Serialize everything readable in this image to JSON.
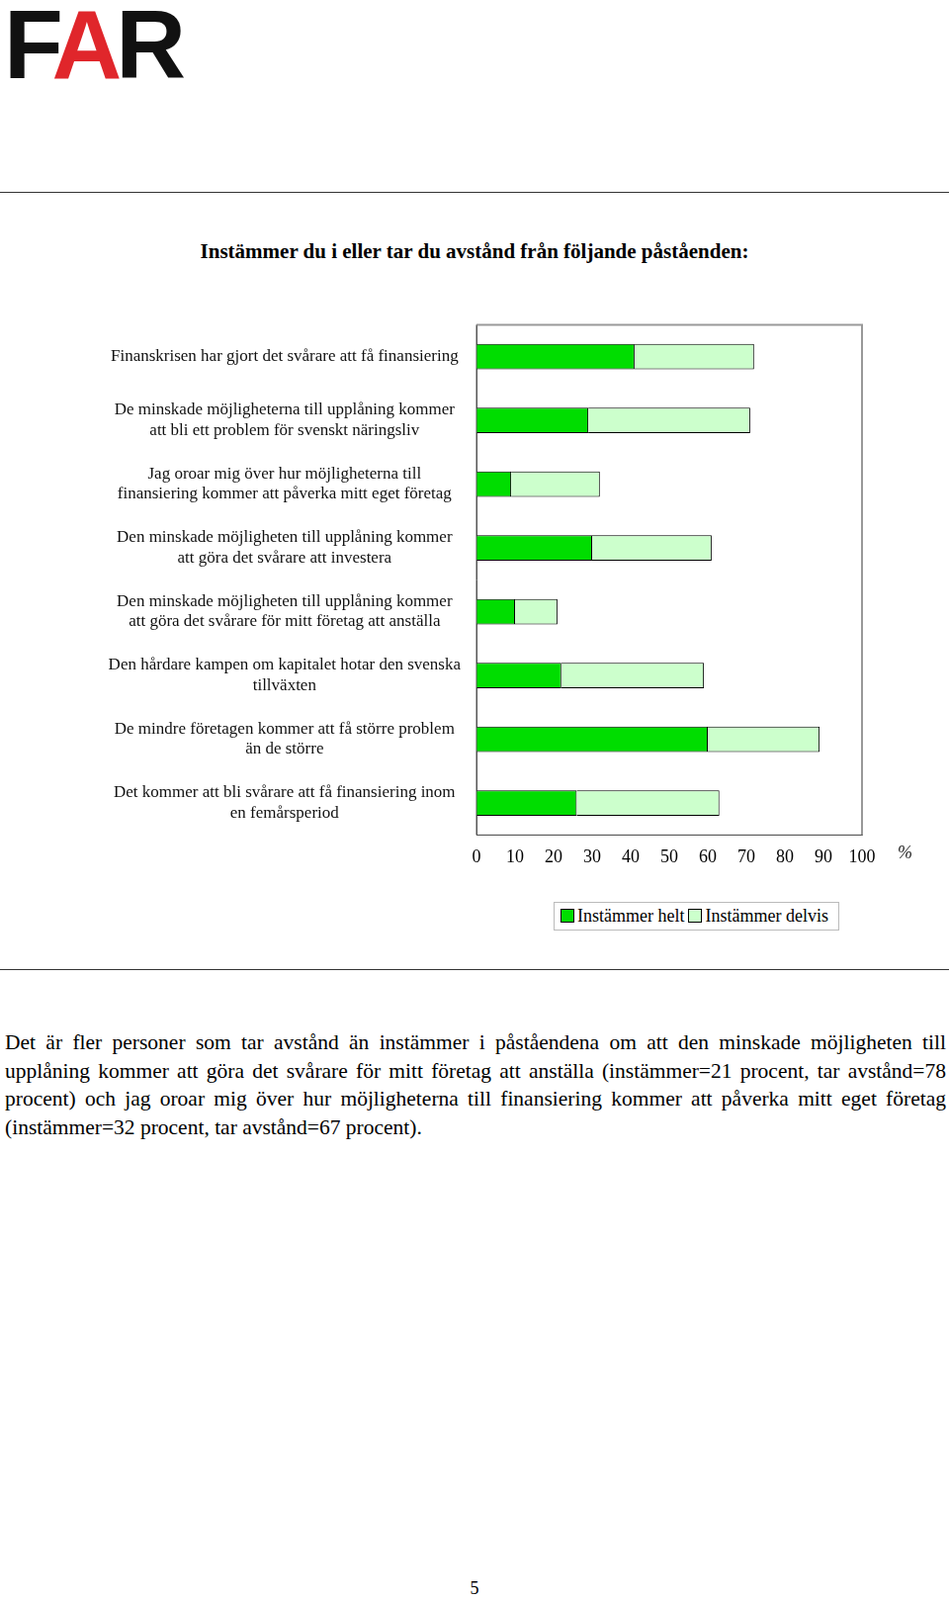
{
  "logo": "FAR",
  "chart_data": {
    "type": "bar",
    "orientation": "horizontal",
    "stacked": true,
    "title": "Instämmer du i eller tar du avstånd från följande påståenden:",
    "categories": [
      [
        "Finanskrisen har gjort det svårare att få finansiering"
      ],
      [
        "De minskade möjligheterna till upplåning kommer",
        "att bli ett problem för svenskt näringsliv"
      ],
      [
        "Jag oroar mig över hur möjligheterna till",
        "finansiering kommer att påverka mitt eget företag"
      ],
      [
        "Den minskade möjligheten till upplåning kommer",
        "att göra det svårare att investera"
      ],
      [
        "Den minskade möjligheten till upplåning kommer",
        "att göra det svårare för mitt företag att anställa"
      ],
      [
        "Den hårdare kampen om kapitalet hotar den svenska",
        "tillväxten"
      ],
      [
        "De mindre företagen kommer att få större problem",
        "än de större"
      ],
      [
        "Det kommer att bli svårare att få finansiering inom",
        "en femårsperiod"
      ]
    ],
    "series": [
      {
        "name": "Instämmer helt",
        "color": "#00dd00",
        "values": [
          41,
          29,
          9,
          30,
          10,
          22,
          60,
          26
        ]
      },
      {
        "name": "Instämmer delvis",
        "color": "#ccffcc",
        "values": [
          31,
          42,
          23,
          31,
          11,
          37,
          29,
          37
        ]
      }
    ],
    "xlim": [
      0,
      100
    ],
    "xticks": [
      0,
      10,
      20,
      30,
      40,
      50,
      60,
      70,
      80,
      90,
      100
    ],
    "x_label": "%",
    "grid": false,
    "legend": "bottom",
    "data_labels": false
  },
  "paragraph": "Det är fler personer som tar avstånd än instämmer i påståendena om att den minskade möjligheten till upplåning kommer att göra det svårare för mitt företag att anställa (instämmer=21 procent, tar avstånd=78 procent) och jag oroar mig över hur möjligheterna till finansiering kommer att påverka mitt eget företag (instämmer=32 procent, tar avstånd=67 procent).",
  "page_number": "5"
}
